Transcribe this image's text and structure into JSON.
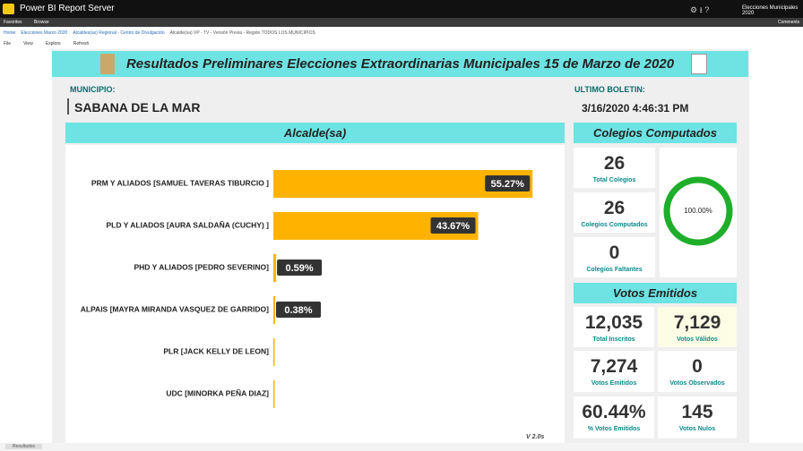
{
  "app": {
    "title": "Power BI Report Server",
    "user": "Elecciones Municipales 2020",
    "nav": [
      "Favorites",
      "Browse"
    ],
    "comments": "Comments",
    "breadcrumb": [
      "Home",
      "Elecciones Marzo 2020",
      "Alcaldes(as) Regional - Centro de Divulgación",
      "Alcalde(sa) VP - TV - Versión Previa - Región TODOS LOS MUNICIPIOS"
    ],
    "toolbar": [
      "File",
      "View",
      "Explore",
      "Refresh"
    ],
    "tab": "Resultados"
  },
  "report": {
    "title": "Resultados Preliminares Elecciones Extraordinarias Municipales 15 de Marzo de 2020",
    "municipio_label": "MUNICIPIO:",
    "municipio": "SABANA DE LA MAR",
    "boletin_label": "ULTIMO BOLETIN:",
    "boletin": "3/16/2020 4:46:31 PM",
    "version": "V 2.0s",
    "colegios_header": "Colegios Computados",
    "colegios": [
      {
        "value": "26",
        "label": "Total Colegios"
      },
      {
        "value": "26",
        "label": "Colegios Computados"
      },
      {
        "value": "0",
        "label": "Colegios Faltantes"
      }
    ],
    "gauge": {
      "value": 100,
      "label": "100.00%",
      "range": [
        0,
        100
      ]
    },
    "votos_header": "Votos Emitidos",
    "votos": [
      {
        "value": "12,035",
        "label": "Total Inscritos"
      },
      {
        "value": "7,129",
        "label": "Votos Válidos"
      },
      {
        "value": "7,274",
        "label": "Votos Emitidos"
      },
      {
        "value": "0",
        "label": "Votos Observados"
      },
      {
        "value": "60.44%",
        "label": "% Votos Emitidos"
      },
      {
        "value": "145",
        "label": "Votos Nulos"
      }
    ]
  },
  "chart_data": {
    "type": "bar",
    "orientation": "horizontal",
    "title": "Alcalde(sa)",
    "categories": [
      "PRM Y ALIADOS [SAMUEL TAVERAS TIBURCIO ]",
      "PLD Y ALIADOS [AURA SALDAÑA (CUCHY) ]",
      "PHD Y ALIADOS [PEDRO SEVERINO]",
      "ALPAIS [MAYRA MIRANDA VASQUEZ DE GARRIDO]",
      "PLR [JACK KELLY DE LEON]",
      "UDC [MINORKA PEÑA DIAZ]"
    ],
    "values": [
      55.27,
      43.67,
      0.59,
      0.38,
      0.05,
      0.04
    ],
    "value_labels": [
      "55.27%",
      "43.67%",
      "0.59%",
      "0.38%",
      null,
      null
    ],
    "color": "#ffb300",
    "xlim": [
      0,
      60
    ]
  }
}
